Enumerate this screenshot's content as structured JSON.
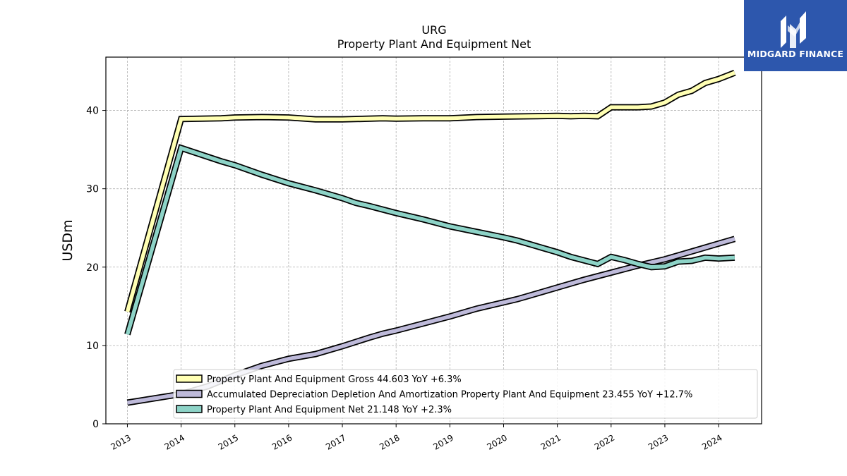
{
  "brand": {
    "name": "MIDGARD FINANCE",
    "logo_icon": "midgard-m-logo-icon",
    "color": "#2d57ad"
  },
  "chart_data": {
    "type": "line",
    "title": "URG",
    "subtitle": "Property Plant And Equipment Net",
    "xlabel": "",
    "ylabel": "USDm",
    "xlim": [
      2012.6,
      2024.8
    ],
    "ylim": [
      0,
      46.8
    ],
    "yticks": [
      0,
      10,
      20,
      30,
      40
    ],
    "xticks": [
      "2013",
      "2014",
      "2015",
      "2016",
      "2017",
      "2018",
      "2019",
      "2020",
      "2021",
      "2022",
      "2023",
      "2024"
    ],
    "grid": true,
    "legend_position": "bottom-center",
    "series": [
      {
        "name": "Property Plant And Equipment Gross",
        "legend_label": "Property Plant And Equipment Gross  44.603 YoY +6.3%",
        "color": "#ffffb3",
        "points": [
          [
            2013.0,
            14.3
          ],
          [
            2014.0,
            38.9
          ],
          [
            2014.75,
            39.0
          ],
          [
            2015.0,
            39.1
          ],
          [
            2015.5,
            39.15
          ],
          [
            2016.0,
            39.1
          ],
          [
            2016.5,
            38.85
          ],
          [
            2017.0,
            38.85
          ],
          [
            2017.25,
            38.9
          ],
          [
            2017.75,
            39.0
          ],
          [
            2018.0,
            38.95
          ],
          [
            2018.5,
            39.0
          ],
          [
            2019.0,
            39.0
          ],
          [
            2019.5,
            39.15
          ],
          [
            2020.0,
            39.2
          ],
          [
            2020.5,
            39.25
          ],
          [
            2021.0,
            39.3
          ],
          [
            2021.25,
            39.25
          ],
          [
            2021.5,
            39.3
          ],
          [
            2021.75,
            39.25
          ],
          [
            2022.0,
            40.4
          ],
          [
            2022.5,
            40.4
          ],
          [
            2022.75,
            40.5
          ],
          [
            2023.0,
            41.0
          ],
          [
            2023.25,
            42.0
          ],
          [
            2023.5,
            42.5
          ],
          [
            2023.75,
            43.5
          ],
          [
            2024.0,
            44.0
          ],
          [
            2024.3,
            44.8
          ]
        ]
      },
      {
        "name": "Accumulated Depreciation Depletion And Amortization Property Plant And Equipment",
        "legend_label": "Accumulated Depreciation Depletion And Amortization Property Plant And Equipment  23.455 YoY +12.7%",
        "color": "#bebada",
        "points": [
          [
            2013.0,
            2.7
          ],
          [
            2014.0,
            3.8
          ],
          [
            2014.5,
            4.8
          ],
          [
            2015.0,
            6.2
          ],
          [
            2015.5,
            7.4
          ],
          [
            2016.0,
            8.3
          ],
          [
            2016.5,
            8.9
          ],
          [
            2017.0,
            9.9
          ],
          [
            2017.5,
            11.0
          ],
          [
            2017.75,
            11.5
          ],
          [
            2018.0,
            11.9
          ],
          [
            2018.5,
            12.8
          ],
          [
            2019.0,
            13.7
          ],
          [
            2019.5,
            14.7
          ],
          [
            2020.0,
            15.5
          ],
          [
            2020.25,
            15.9
          ],
          [
            2020.5,
            16.4
          ],
          [
            2021.0,
            17.4
          ],
          [
            2021.5,
            18.4
          ],
          [
            2022.0,
            19.3
          ],
          [
            2022.5,
            20.2
          ],
          [
            2023.0,
            21.0
          ],
          [
            2023.5,
            22.0
          ],
          [
            2024.0,
            23.0
          ],
          [
            2024.3,
            23.6
          ]
        ]
      },
      {
        "name": "Property Plant And Equipment Net",
        "legend_label": "Property Plant And Equipment Net  21.148 YoY +2.3%",
        "color": "#8dd3c7",
        "points": [
          [
            2013.0,
            11.4
          ],
          [
            2014.0,
            35.2
          ],
          [
            2014.75,
            33.5
          ],
          [
            2015.0,
            33.0
          ],
          [
            2015.5,
            31.8
          ],
          [
            2016.0,
            30.7
          ],
          [
            2016.5,
            29.8
          ],
          [
            2017.0,
            28.8
          ],
          [
            2017.25,
            28.2
          ],
          [
            2017.5,
            27.8
          ],
          [
            2018.0,
            26.9
          ],
          [
            2018.5,
            26.1
          ],
          [
            2019.0,
            25.2
          ],
          [
            2019.5,
            24.5
          ],
          [
            2020.0,
            23.8
          ],
          [
            2020.25,
            23.4
          ],
          [
            2020.5,
            22.9
          ],
          [
            2021.0,
            21.9
          ],
          [
            2021.25,
            21.3
          ],
          [
            2021.75,
            20.4
          ],
          [
            2022.0,
            21.3
          ],
          [
            2022.25,
            20.9
          ],
          [
            2022.5,
            20.4
          ],
          [
            2022.75,
            20.0
          ],
          [
            2023.0,
            20.1
          ],
          [
            2023.25,
            20.7
          ],
          [
            2023.5,
            20.8
          ],
          [
            2023.75,
            21.2
          ],
          [
            2024.0,
            21.1
          ],
          [
            2024.3,
            21.2
          ]
        ]
      }
    ]
  }
}
